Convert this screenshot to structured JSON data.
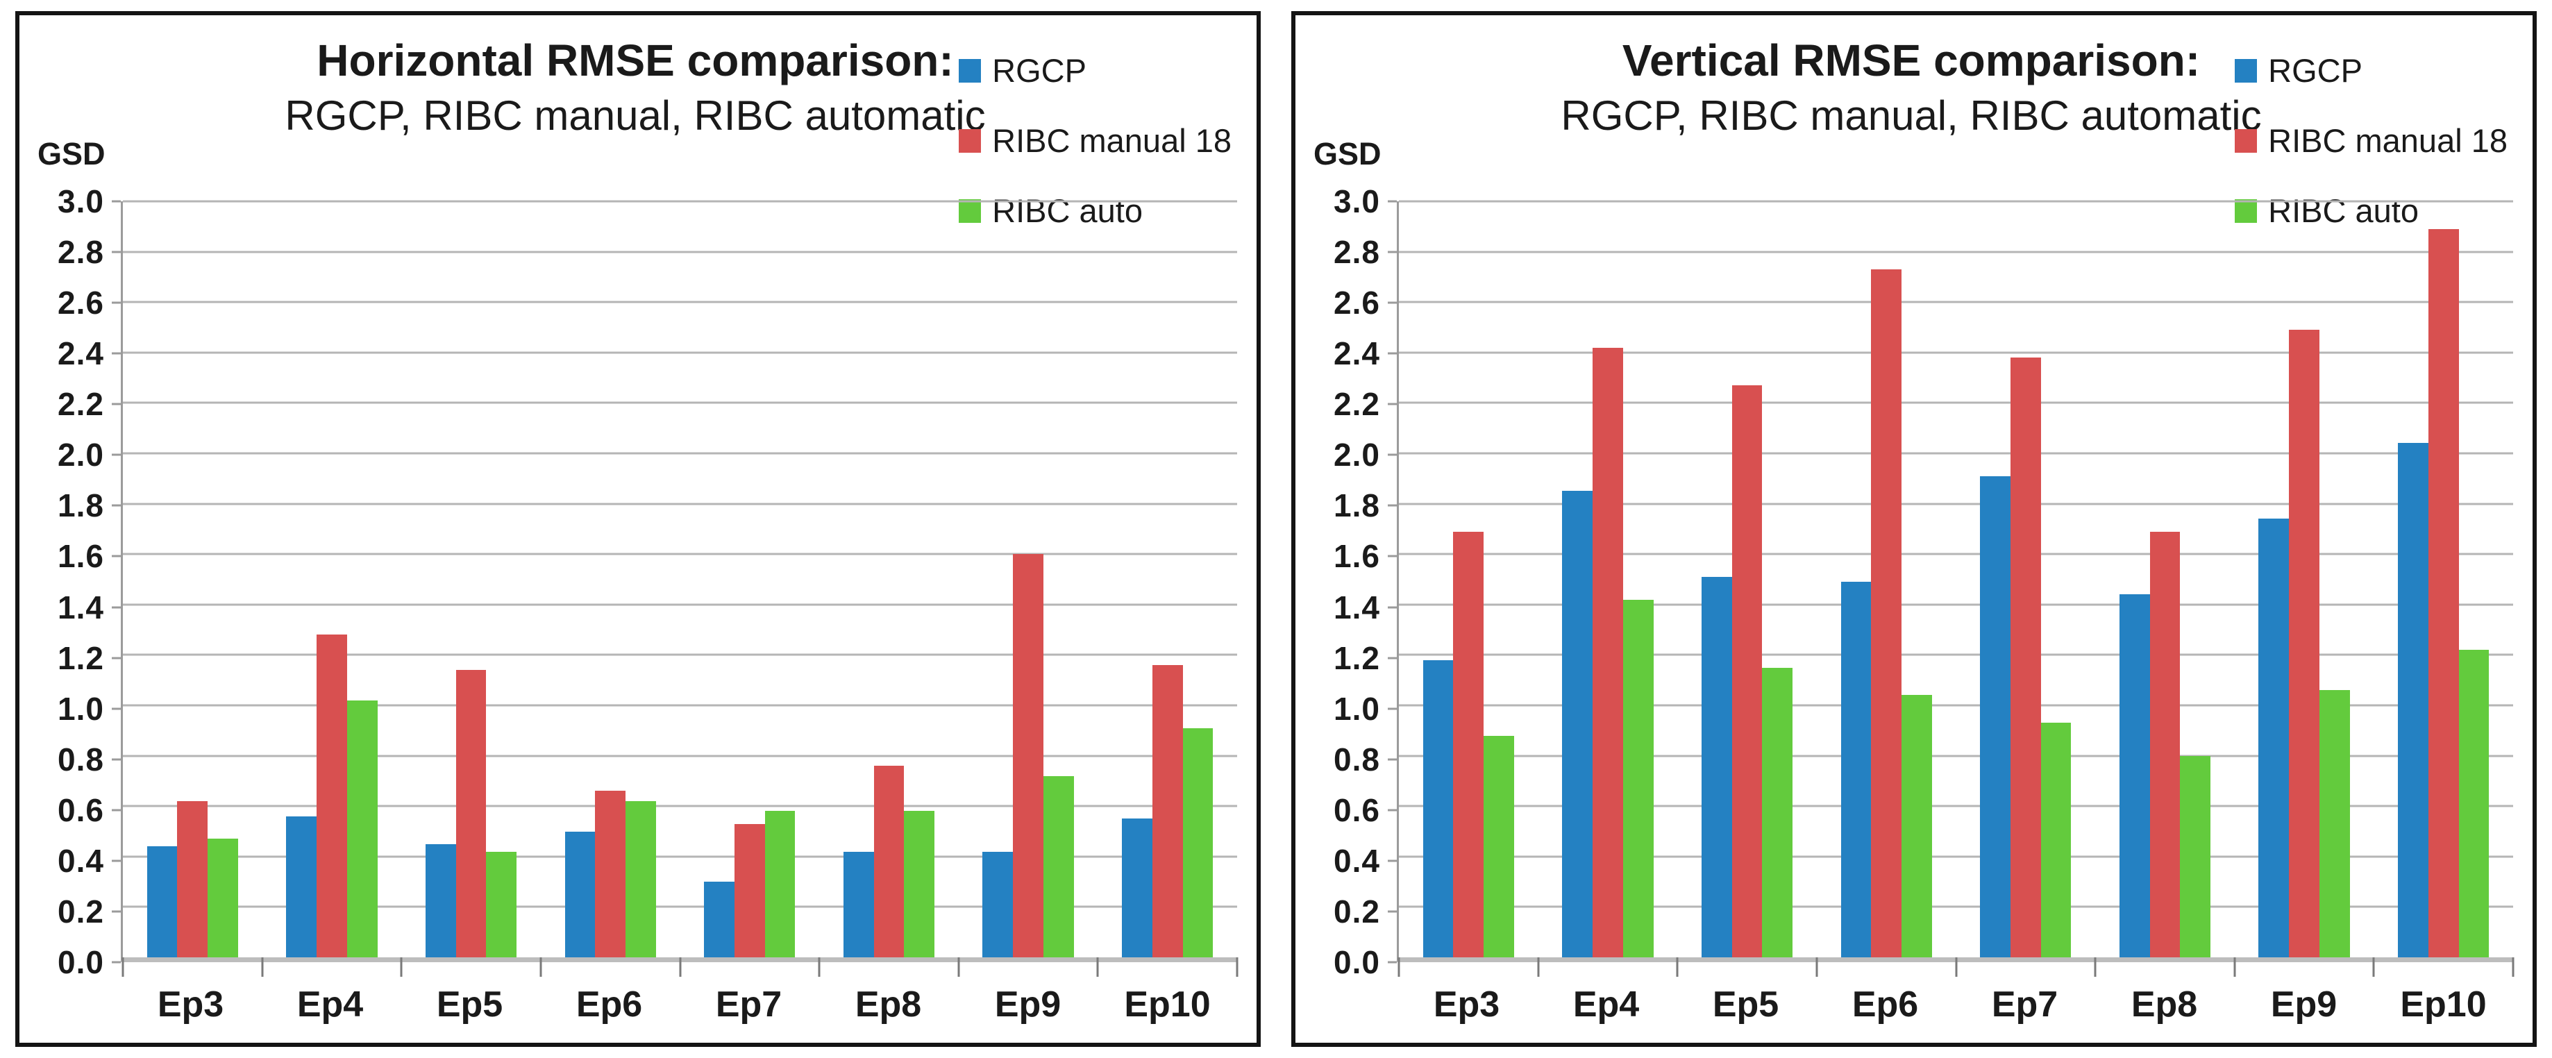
{
  "style": {
    "panel_border_color": "#141414",
    "grid_color": "#b5b5b5",
    "y_axis_color": "#9b9b9b",
    "x_axis_color": "#bdbdbd",
    "tick_color": "#7a7a7a",
    "text_color": "#1a1a1a",
    "background": "#ffffff"
  },
  "chart_data": [
    {
      "type": "bar",
      "title": "Horizontal RMSE comparison:",
      "subtitle": "RGCP, RIBC manual, RIBC automatic",
      "ylabel": "GSD",
      "xlabel": "",
      "ylim": [
        0,
        3.0
      ],
      "ytick_step": 0.2,
      "grid": true,
      "legend_position": "top-right",
      "categories": [
        "Ep3",
        "Ep4",
        "Ep5",
        "Ep6",
        "Ep7",
        "Ep8",
        "Ep9",
        "Ep10"
      ],
      "series": [
        {
          "name": "RGCP",
          "color": "#2481c2",
          "values": [
            0.44,
            0.56,
            0.45,
            0.5,
            0.3,
            0.42,
            0.42,
            0.55
          ]
        },
        {
          "name": "RIBC manual 18",
          "color": "#d85050",
          "values": [
            0.62,
            1.28,
            1.14,
            0.66,
            0.53,
            0.76,
            1.6,
            1.16
          ]
        },
        {
          "name": "RIBC auto",
          "color": "#63cb3d",
          "values": [
            0.47,
            1.02,
            0.42,
            0.62,
            0.58,
            0.58,
            0.72,
            0.91
          ]
        }
      ]
    },
    {
      "type": "bar",
      "title": "Vertical RMSE comparison:",
      "subtitle": "RGCP, RIBC manual, RIBC automatic",
      "ylabel": "GSD",
      "xlabel": "",
      "ylim": [
        0,
        3.0
      ],
      "ytick_step": 0.2,
      "grid": true,
      "legend_position": "top-right",
      "categories": [
        "Ep3",
        "Ep4",
        "Ep5",
        "Ep6",
        "Ep7",
        "Ep8",
        "Ep9",
        "Ep10"
      ],
      "series": [
        {
          "name": "RGCP",
          "color": "#2481c2",
          "values": [
            1.18,
            1.85,
            1.51,
            1.49,
            1.91,
            1.44,
            1.74,
            2.04
          ]
        },
        {
          "name": "RIBC manual 18",
          "color": "#d85050",
          "values": [
            1.69,
            2.42,
            2.27,
            2.73,
            2.38,
            1.69,
            2.49,
            2.89
          ]
        },
        {
          "name": "RIBC auto",
          "color": "#63cb3d",
          "values": [
            0.88,
            1.42,
            1.15,
            1.04,
            0.93,
            0.8,
            1.06,
            1.22
          ]
        }
      ]
    }
  ]
}
